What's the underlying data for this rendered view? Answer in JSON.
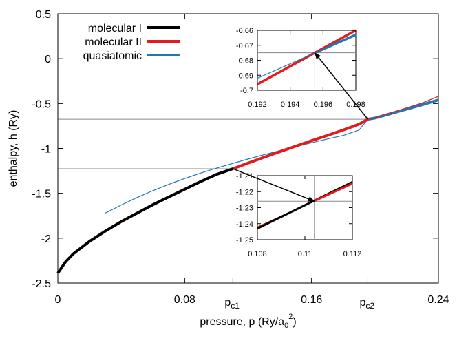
{
  "chart_data": {
    "type": "line",
    "title": "",
    "xlabel": "pressure, p (Ry/a",
    "xlabel_sub": "0",
    "xlabel_sup": "2",
    "xlabel_tail": ")",
    "ylabel": "enthalpy, h (Ry)",
    "xlim": [
      0,
      0.24
    ],
    "ylim": [
      -2.5,
      0.5
    ],
    "x_ticks": [
      0,
      0.08,
      0.16,
      0.24
    ],
    "x_tick_labels": [
      "0",
      "0.08",
      "0.16",
      "0.24"
    ],
    "y_ticks": [
      0.5,
      0,
      -0.5,
      -1,
      -1.5,
      -2,
      -2.5
    ],
    "y_tick_labels": [
      "0.5",
      "0",
      "-0.5",
      "-1",
      "-1.5",
      "-2",
      "-2.5"
    ],
    "special_ticks": [
      {
        "x": 0.1104,
        "label": "p",
        "sub": "c1"
      },
      {
        "x": 0.1955,
        "label": "p",
        "sub": "c2"
      }
    ],
    "reference_lines_h": [
      -0.675,
      -1.226
    ],
    "legend": {
      "position": "top-left",
      "entries": [
        {
          "name": "molecular I",
          "color": "#000000"
        },
        {
          "name": "molecular II",
          "color": "#e41a1c"
        },
        {
          "name": "quasiatomic",
          "color": "#1f78b4"
        }
      ]
    },
    "series": [
      {
        "name": "molecular I",
        "color": "#000000",
        "x": [
          0.0,
          0.005,
          0.01,
          0.02,
          0.03,
          0.04,
          0.05,
          0.06,
          0.07,
          0.08,
          0.09,
          0.1,
          0.1104
        ],
        "y": [
          -2.39,
          -2.26,
          -2.17,
          -2.035,
          -1.92,
          -1.815,
          -1.72,
          -1.627,
          -1.54,
          -1.455,
          -1.37,
          -1.29,
          -1.226
        ]
      },
      {
        "name": "molecular II",
        "color": "#e41a1c",
        "x": [
          0.1104,
          0.12,
          0.13,
          0.14,
          0.15,
          0.16,
          0.17,
          0.18,
          0.19,
          0.1955,
          0.2,
          0.21,
          0.22,
          0.23,
          0.24
        ],
        "y": [
          -1.226,
          -1.163,
          -1.099,
          -1.036,
          -0.975,
          -0.914,
          -0.855,
          -0.795,
          -0.73,
          -0.675,
          -0.66,
          -0.604,
          -0.548,
          -0.492,
          -0.42
        ]
      },
      {
        "name": "quasiatomic",
        "color": "#1f78b4",
        "x": [
          0.03,
          0.04,
          0.05,
          0.06,
          0.07,
          0.08,
          0.09,
          0.1,
          0.11,
          0.12,
          0.13,
          0.14,
          0.15,
          0.16,
          0.17,
          0.18,
          0.19,
          0.1955,
          0.2,
          0.21,
          0.22,
          0.23,
          0.24
        ],
        "y": [
          -1.72,
          -1.63,
          -1.546,
          -1.47,
          -1.4,
          -1.335,
          -1.275,
          -1.22,
          -1.168,
          -1.118,
          -1.07,
          -1.025,
          -0.98,
          -0.937,
          -0.895,
          -0.855,
          -0.795,
          -0.675,
          -0.662,
          -0.612,
          -0.562,
          -0.512,
          -0.46
        ]
      }
    ],
    "insets": [
      {
        "name": "inset-top",
        "xlim": [
          0.192,
          0.198
        ],
        "ylim": [
          -0.7,
          -0.66
        ],
        "x_ticks": [
          0.192,
          0.194,
          0.196,
          0.198
        ],
        "x_tick_labels": [
          "0.192",
          "0.194",
          "0.196",
          "0.198"
        ],
        "y_ticks": [
          -0.66,
          -0.67,
          -0.68,
          -0.69,
          -0.7
        ],
        "y_tick_labels": [
          "-0.66",
          "-0.67",
          "-0.68",
          "-0.69",
          "-0.7"
        ],
        "crosshair": {
          "x": 0.1955,
          "y": -0.675
        },
        "arrow_from": {
          "x": 0.1955,
          "y": -0.675
        },
        "series": [
          {
            "name": "molecular II",
            "color": "#e41a1c",
            "x": [
              0.192,
              0.198
            ],
            "y": [
              -0.696,
              -0.66
            ]
          },
          {
            "name": "quasiatomic",
            "color": "#1f78b4",
            "x": [
              0.192,
              0.198
            ],
            "y": [
              -0.692,
              -0.663
            ]
          }
        ]
      },
      {
        "name": "inset-bottom",
        "xlim": [
          0.108,
          0.112
        ],
        "ylim": [
          -1.25,
          -1.21
        ],
        "x_ticks": [
          0.108,
          0.11,
          0.112
        ],
        "x_tick_labels": [
          "0.108",
          "0.11",
          "0.112"
        ],
        "y_ticks": [
          -1.21,
          -1.22,
          -1.23,
          -1.24,
          -1.25
        ],
        "y_tick_labels": [
          "-1.21",
          "-1.22",
          "-1.23",
          "-1.24",
          "-1.25"
        ],
        "crosshair": {
          "x": 0.1104,
          "y": -1.226
        },
        "arrow_from": {
          "x": 0.1104,
          "y": -1.226
        },
        "series": [
          {
            "name": "molecular II",
            "color": "#e41a1c",
            "x": [
              0.108,
              0.112
            ],
            "y": [
              -1.242,
              -1.215
            ]
          },
          {
            "name": "molecular I",
            "color": "#000000",
            "x": [
              0.108,
              0.112
            ],
            "y": [
              -1.243,
              -1.214
            ]
          }
        ]
      }
    ]
  }
}
